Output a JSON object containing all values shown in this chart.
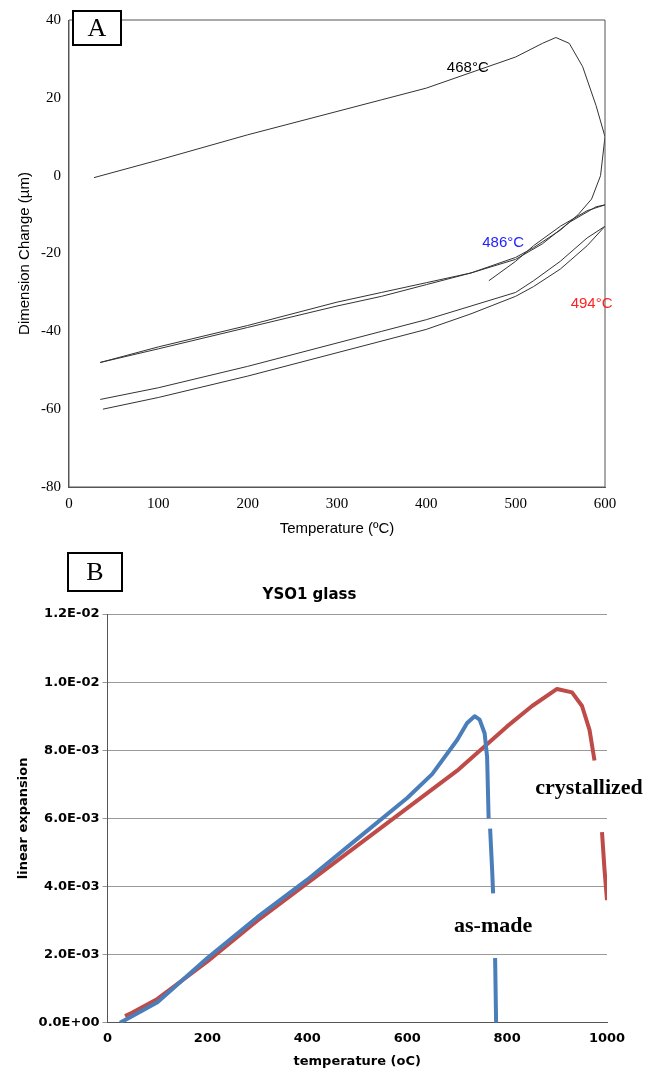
{
  "chart_data": [
    {
      "type": "line",
      "xlabel": "Temperature (ºC)",
      "ylabel": "Dimension Change (µm)",
      "xlim": [
        0,
        600
      ],
      "xticks": [
        0,
        100,
        200,
        300,
        400,
        500,
        600
      ],
      "ylim": [
        -80,
        40
      ],
      "yticks": [
        -80,
        -60,
        -40,
        -20,
        0,
        20,
        40
      ],
      "grid": false,
      "legend": false,
      "marker": "none",
      "line_style": "solid",
      "series": [
        {
          "color": "#333333",
          "x": [
            28,
            100,
            200,
            300,
            350,
            400,
            450,
            500,
            530,
            545,
            560,
            575,
            590,
            600,
            595,
            585,
            570,
            550,
            520,
            500,
            450,
            400,
            350,
            300,
            200,
            100,
            35
          ],
          "values": [
            -0.5,
            4,
            10.5,
            16.5,
            19.5,
            22.5,
            26.5,
            30.5,
            34,
            35.5,
            34,
            28,
            18,
            10,
            0,
            -6,
            -10,
            -14,
            -18.5,
            -21,
            -25,
            -27.5,
            -30,
            -32.5,
            -38.5,
            -44,
            -48
          ]
        },
        {
          "color": "#333333",
          "x": [
            35,
            100,
            200,
            300,
            350,
            400,
            450,
            500,
            530,
            560,
            590,
            600,
            580,
            550,
            520,
            500,
            470
          ],
          "values": [
            -48,
            -44.5,
            -39,
            -33.5,
            -31,
            -28,
            -25,
            -21.5,
            -17.5,
            -12,
            -8,
            -7.5,
            -9,
            -13,
            -18,
            -22,
            -27
          ]
        },
        {
          "color": "#333333",
          "x": [
            35,
            100,
            200,
            300,
            350,
            400,
            450,
            500,
            520,
            550,
            580,
            600
          ],
          "values": [
            -57.5,
            -54.5,
            -49,
            -43,
            -40,
            -37,
            -33.5,
            -30,
            -27,
            -22,
            -16,
            -13
          ]
        },
        {
          "color": "#333333",
          "x": [
            38,
            100,
            200,
            300,
            400,
            450,
            500,
            520,
            550,
            580,
            600
          ],
          "values": [
            -60,
            -57,
            -51.5,
            -45.5,
            -39.5,
            -35.5,
            -31,
            -28.5,
            -24,
            -18,
            -13
          ]
        }
      ],
      "annotations": [
        "A",
        "468°C",
        "486°C",
        "494°C"
      ]
    },
    {
      "type": "line",
      "title": "YSO1 glass",
      "xlabel": "temperature (oC)",
      "ylabel": "linear expansion",
      "xlim": [
        0,
        1000
      ],
      "xticks": [
        0,
        200,
        400,
        600,
        800,
        1000
      ],
      "ylim": [
        0,
        0.012
      ],
      "yticks": [
        {
          "value": 0,
          "label": "0.0E+00"
        },
        {
          "value": 0.002,
          "label": "2.0E-03"
        },
        {
          "value": 0.004,
          "label": "4.0E-03"
        },
        {
          "value": 0.006,
          "label": "6.0E-03"
        },
        {
          "value": 0.008,
          "label": "8.0E-03"
        },
        {
          "value": 0.01,
          "label": "1.0E-02"
        },
        {
          "value": 0.012,
          "label": "1.2E-02"
        }
      ],
      "grid": "y",
      "legend": false,
      "marker": "none",
      "line_style": "solid",
      "series": [
        {
          "color": "#4a7ebb",
          "x": [
            25,
            50,
            100,
            200,
            300,
            400,
            500,
            600,
            650,
            700,
            720,
            735,
            745,
            755,
            760,
            763,
            null,
            766,
            770,
            772,
            null,
            776,
            778
          ],
          "values": [
            0,
            0.0002,
            0.0006,
            0.0019,
            0.0031,
            0.0042,
            0.0054,
            0.0066,
            0.0073,
            0.0083,
            0.0088,
            0.009,
            0.0089,
            0.0085,
            0.0078,
            0.006,
            null,
            0.0057,
            0.0045,
            0.0038,
            null,
            0.0019,
            0
          ]
        },
        {
          "color": "#be4b48",
          "x": [
            35,
            50,
            100,
            200,
            300,
            400,
            500,
            600,
            700,
            800,
            850,
            900,
            930,
            950,
            965,
            975,
            null,
            990,
            995,
            1000
          ],
          "values": [
            0.0002,
            0.0003,
            0.0007,
            0.0018,
            0.003,
            0.0041,
            0.0052,
            0.0063,
            0.0074,
            0.0087,
            0.0093,
            0.0098,
            0.0097,
            0.0093,
            0.0086,
            0.0077,
            null,
            0.0056,
            0.0045,
            0.0036
          ]
        }
      ],
      "annotations": [
        "B",
        "crystallized",
        "as-made"
      ]
    }
  ]
}
